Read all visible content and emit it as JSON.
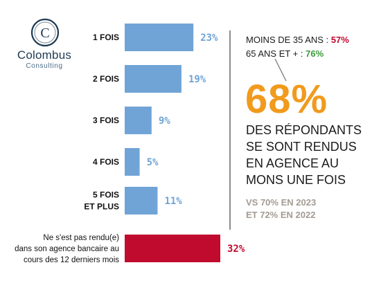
{
  "logo": {
    "letter": "C",
    "name": "Colombus",
    "subtitle": "Consulting"
  },
  "chart_data": {
    "type": "bar",
    "orientation": "horizontal",
    "categories": [
      [
        "1 FOIS"
      ],
      [
        "2 FOIS"
      ],
      [
        "3 FOIS"
      ],
      [
        "4 FOIS"
      ],
      [
        "5 FOIS",
        "ET PLUS"
      ],
      [
        "Ne s'est pas rendu(e)",
        "dans son agence bancaire au",
        "cours des 12 derniers mois"
      ]
    ],
    "values": [
      23,
      19,
      9,
      5,
      11,
      32
    ],
    "value_labels": [
      "23%",
      "19%",
      "9%",
      "5%",
      "11%",
      "32%"
    ],
    "unit": "%",
    "colors": [
      "#70a4d6",
      "#70a4d6",
      "#70a4d6",
      "#70a4d6",
      "#70a4d6",
      "#c00a2e"
    ],
    "label_colors": [
      "#70a4d6",
      "#70a4d6",
      "#70a4d6",
      "#70a4d6",
      "#70a4d6",
      "#c00a2e"
    ],
    "xlim": [
      0,
      32
    ],
    "grid": false,
    "legend": "none"
  },
  "ages": {
    "under35_label": "MOINS DE 35 ANS : ",
    "under35_value": "57%",
    "over65_label": "65 ANS ET + : ",
    "over65_value": "76%"
  },
  "highlight": {
    "value": "68%",
    "lines": [
      "DES RÉPONDANTS",
      "SE SONT RENDUS",
      "EN AGENCE AU",
      "MONS UNE FOIS"
    ],
    "comparison": [
      "VS 70% EN 2023",
      "ET 72% EN 2022"
    ]
  },
  "colors": {
    "bar_blue": "#70a4d6",
    "bar_red": "#c00a2e",
    "highlight_orange": "#f19a1d",
    "age_red": "#c00a2e",
    "age_green": "#3b9a3a",
    "comparison_gray": "#a39b92"
  }
}
